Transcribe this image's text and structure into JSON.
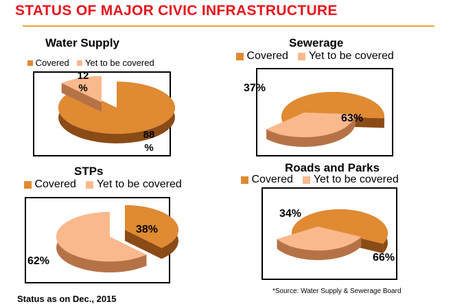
{
  "page": {
    "title": "STATUS OF MAJOR CIVIC INFRASTRUCTURE",
    "status_note": "Status as on Dec., 2015",
    "source_note": "*Source: Water Supply & Sewerage Board"
  },
  "colors": {
    "covered": "#e08a32",
    "covered_dark": "#8b4b16",
    "yet": "#fab98c",
    "yet_dark": "#b67247",
    "title": "#e8141c",
    "rule": "#f3a43c"
  },
  "chart_data": [
    {
      "type": "pie",
      "title": "Water Supply",
      "categories": [
        "Covered",
        "Yet to be covered"
      ],
      "values": [
        88,
        12
      ],
      "data_labels": [
        "88 %",
        "12 %"
      ],
      "legend": "top"
    },
    {
      "type": "pie",
      "title": "Sewerage",
      "categories": [
        "Covered",
        "Yet to be covered"
      ],
      "values": [
        63,
        37
      ],
      "data_labels": [
        "63%",
        "37%"
      ],
      "legend": "top"
    },
    {
      "type": "pie",
      "title": "STPs",
      "categories": [
        "Covered",
        "Yet to be covered"
      ],
      "values": [
        38,
        62
      ],
      "data_labels": [
        "38%",
        "62%"
      ],
      "legend": "top"
    },
    {
      "type": "pie",
      "title": "Roads and Parks",
      "categories": [
        "Covered",
        "Yet to be covered"
      ],
      "values": [
        66,
        34
      ],
      "data_labels": [
        "66%",
        "34%"
      ],
      "legend": "top"
    }
  ]
}
